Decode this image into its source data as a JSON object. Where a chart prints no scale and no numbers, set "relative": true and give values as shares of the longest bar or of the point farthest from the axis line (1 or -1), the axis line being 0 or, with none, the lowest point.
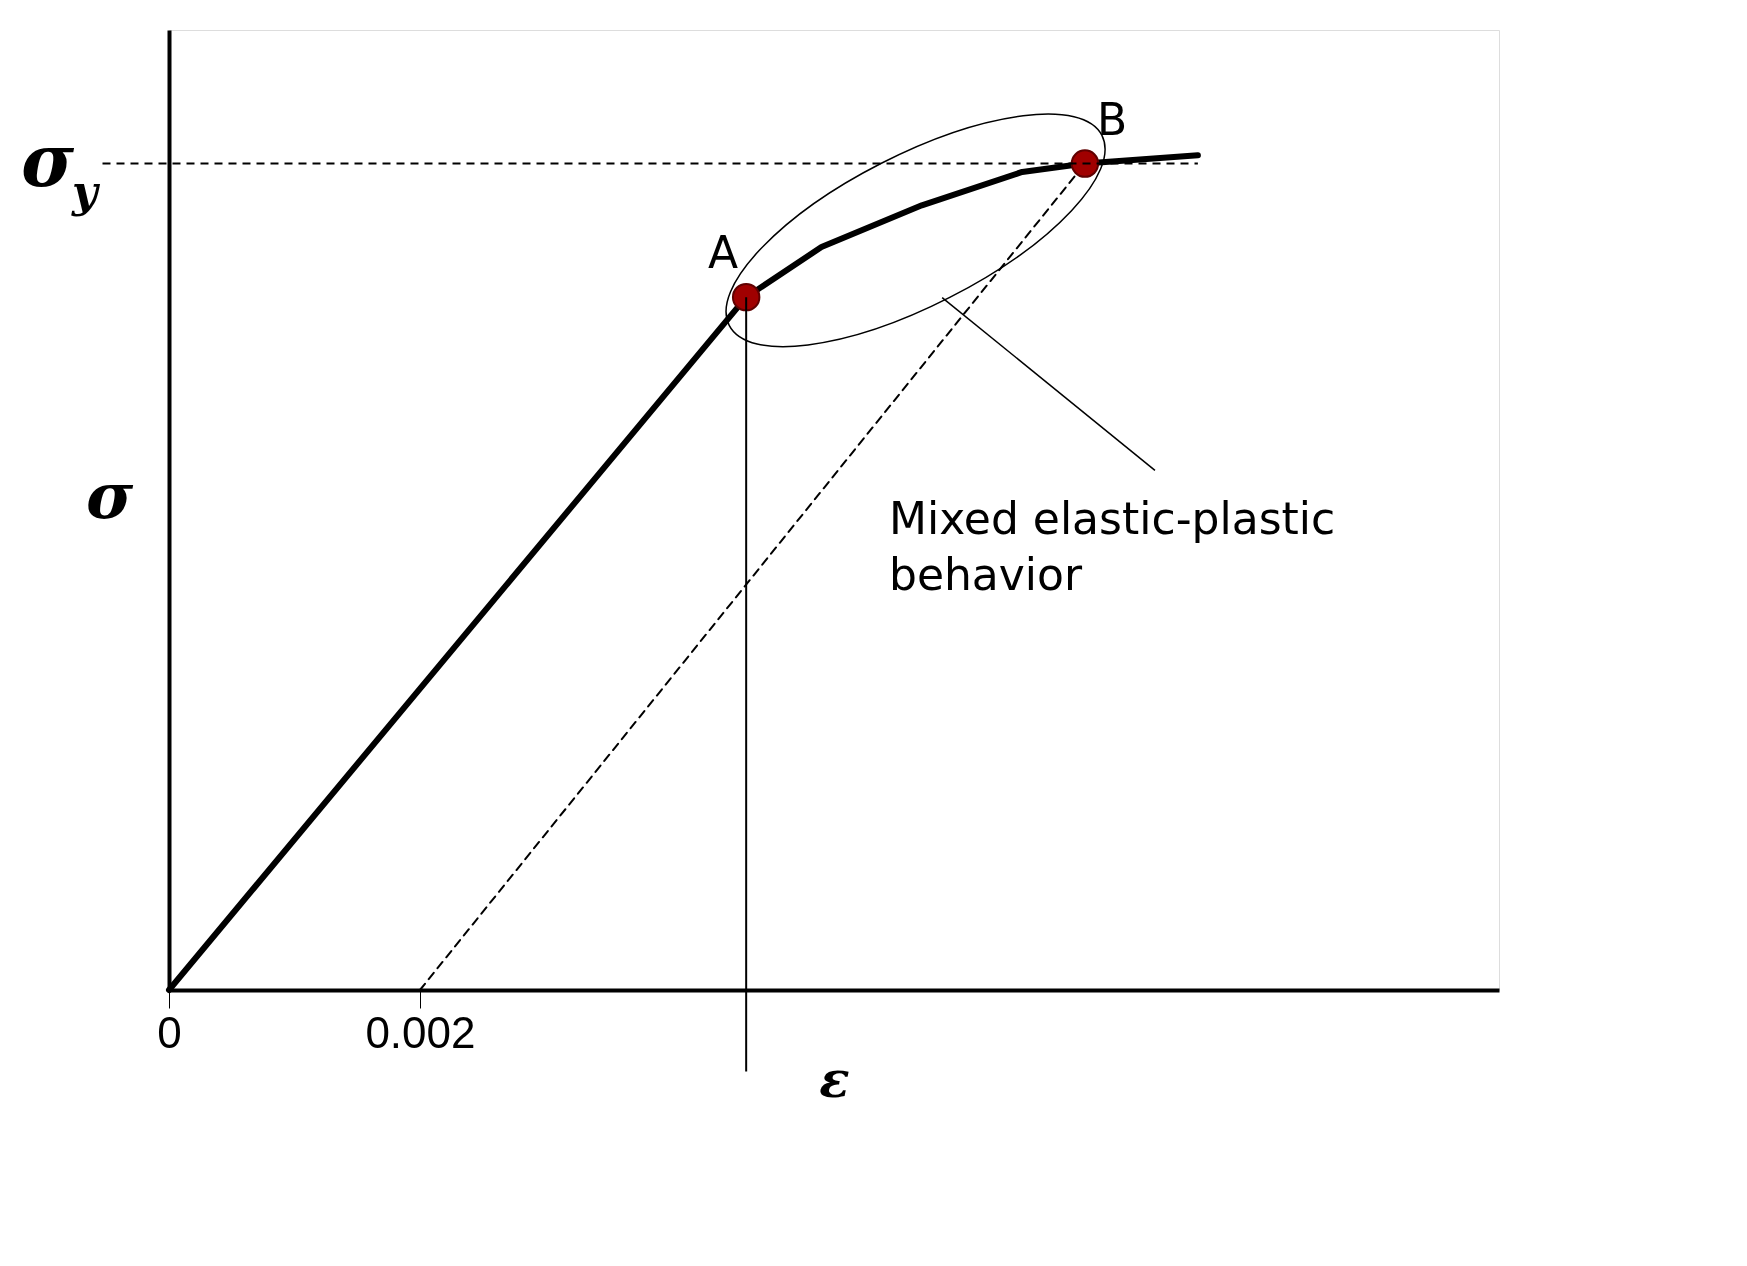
{
  "chart_data": {
    "type": "line",
    "relative": true,
    "xlabel": "ε",
    "ylabel": "σ",
    "x": [
      0,
      0.0046,
      0.0052,
      0.006,
      0.0068,
      0.0073,
      0.0082
    ],
    "series": [
      {
        "color": "#000000",
        "line_style": "solid",
        "values": [
          0,
          0.83,
          0.89,
          0.94,
          0.98,
          0.99,
          1.0
        ]
      },
      {
        "color": "#000000",
        "line_style": "dashed",
        "x": [
          0.002,
          0.0073
        ],
        "values": [
          0,
          0.99
        ]
      },
      {
        "type": "scatter",
        "color": "#a00000",
        "marker": "circle",
        "x": [
          0.0046,
          0.0073
        ],
        "values": [
          0.83,
          0.99
        ]
      }
    ],
    "xlim": [
      0,
      0.0106
    ],
    "xticks": [
      0,
      0.002
    ],
    "tick_labels": "x",
    "grid": false,
    "ref_lines": [
      {
        "axis": "y",
        "value": 0.99,
        "label": "σ$_{y}$",
        "line_style": "dashed"
      },
      {
        "axis": "x",
        "value": 0.0046,
        "line_style": "solid"
      }
    ],
    "annotations": [
      {
        "text": "A",
        "x": 0.0046,
        "y": 0.83
      },
      {
        "text": "B",
        "x": 0.0073,
        "y": 0.99
      },
      "Mixed elastic-plastic behavior"
    ]
  }
}
